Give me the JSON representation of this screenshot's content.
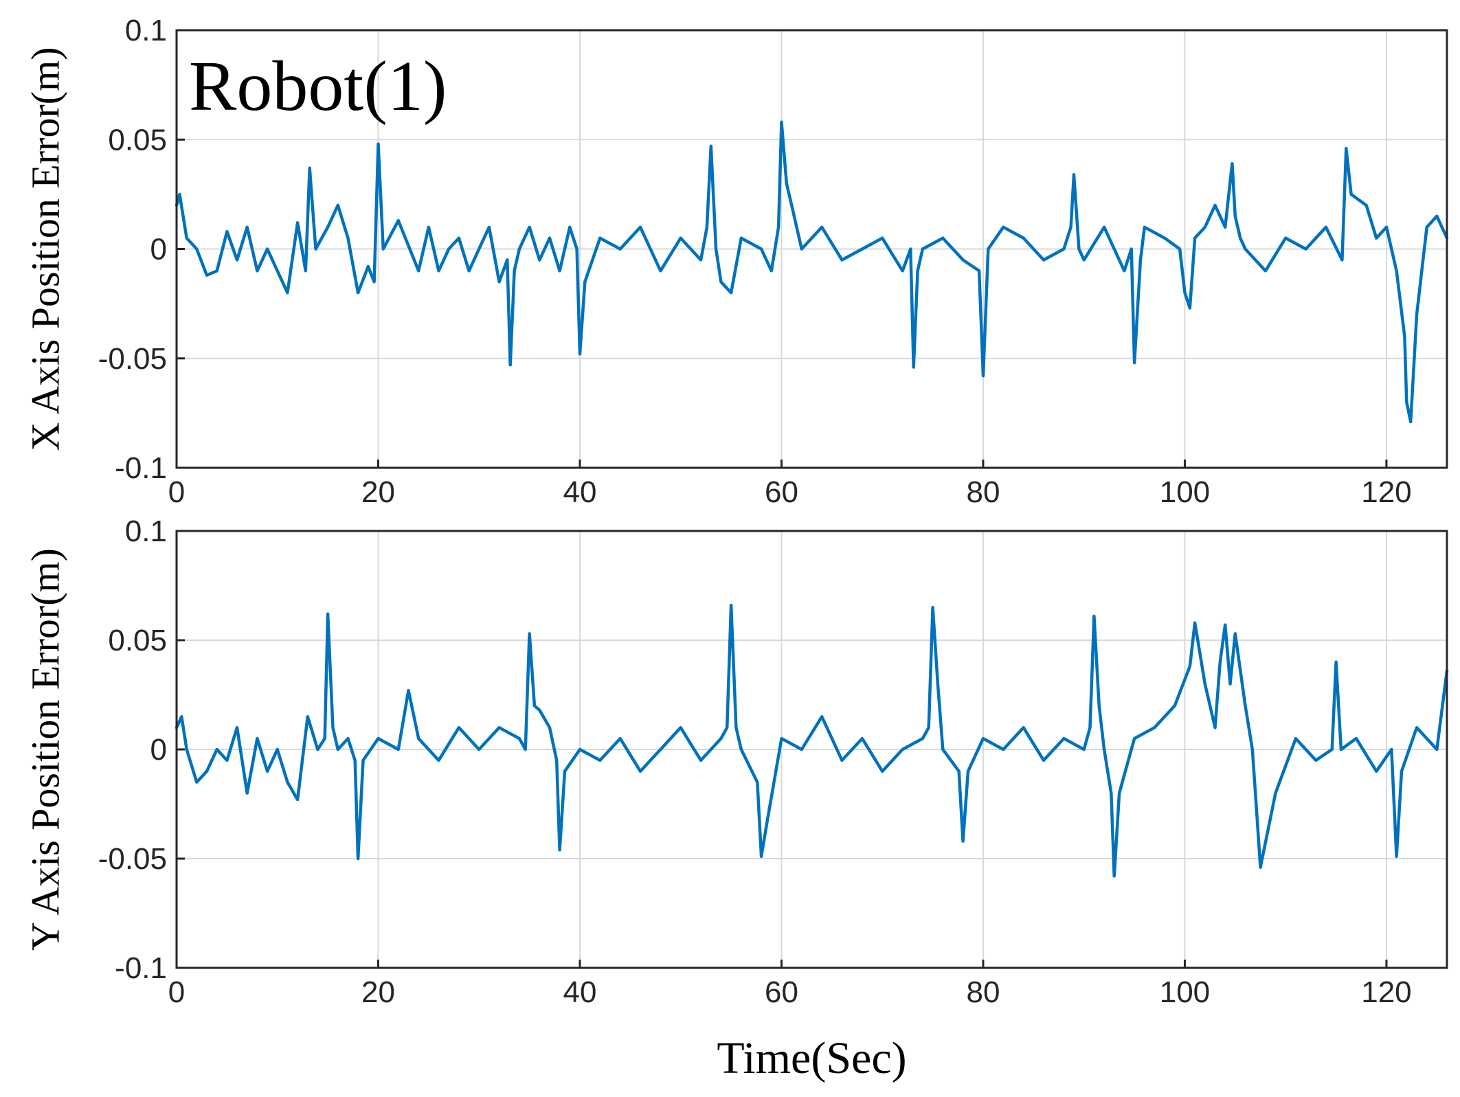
{
  "colors": {
    "series": "#0072BD"
  },
  "chart_data": [
    {
      "type": "line",
      "annotation": "Robot(1)",
      "xlabel": "",
      "ylabel": "X Axis Position Error(m)",
      "xlim": [
        0,
        126
      ],
      "ylim": [
        -0.1,
        0.1
      ],
      "xticks": [
        0,
        20,
        40,
        60,
        80,
        100,
        120
      ],
      "xtick_labels": [
        "0",
        "20",
        "40",
        "60",
        "80",
        "100",
        "120"
      ],
      "yticks": [
        0.1,
        0.05,
        0,
        -0.05,
        -0.1
      ],
      "ytick_labels": [
        "0.1",
        "0.05",
        "0",
        "-0.05",
        "-0.1"
      ],
      "grid": true,
      "series": [
        {
          "x": [
            0,
            0.3,
            1,
            2,
            3,
            4,
            5,
            6,
            7,
            8,
            9,
            10,
            11,
            12,
            12.8,
            13.2,
            13.8,
            15,
            16,
            17,
            18,
            19,
            19.6,
            20,
            20.5,
            22,
            24,
            25,
            26,
            27,
            28,
            29,
            30,
            31,
            32,
            32.8,
            33.1,
            33.5,
            34,
            35,
            36,
            37,
            38,
            39,
            39.7,
            40,
            40.5,
            42,
            44,
            46,
            48,
            50,
            52,
            52.6,
            53,
            53.5,
            54,
            55,
            56,
            58,
            59,
            59.7,
            60,
            60.5,
            61,
            62,
            64,
            66,
            68,
            70,
            72,
            72.8,
            73.1,
            73.5,
            74,
            76,
            78,
            79.6,
            80,
            80.5,
            82,
            84,
            86,
            88,
            88.7,
            89,
            89.5,
            90,
            92,
            94,
            94.7,
            95,
            95.6,
            96,
            98,
            99.5,
            100,
            100.5,
            101,
            102,
            103,
            104,
            104.7,
            105,
            105.5,
            106,
            108,
            110,
            112,
            114,
            115.6,
            116,
            116.5,
            118,
            119,
            120,
            121,
            121.8,
            122,
            122.4,
            123,
            124,
            125,
            126
          ],
          "y": [
            0.02,
            0.025,
            0.005,
            0.0,
            -0.012,
            -0.01,
            0.008,
            -0.005,
            0.01,
            -0.01,
            0.0,
            -0.01,
            -0.02,
            0.012,
            -0.01,
            0.037,
            0.0,
            0.01,
            0.02,
            0.005,
            -0.02,
            -0.008,
            -0.015,
            0.048,
            0.0,
            0.013,
            -0.01,
            0.01,
            -0.01,
            0.0,
            0.005,
            -0.01,
            0.0,
            0.01,
            -0.015,
            -0.005,
            -0.053,
            -0.01,
            0.0,
            0.01,
            -0.005,
            0.005,
            -0.01,
            0.01,
            0.0,
            -0.048,
            -0.015,
            0.005,
            0.0,
            0.01,
            -0.01,
            0.005,
            -0.005,
            0.01,
            0.047,
            0.0,
            -0.015,
            -0.02,
            0.005,
            0.0,
            -0.01,
            0.01,
            0.058,
            0.03,
            0.02,
            0.0,
            0.01,
            -0.005,
            0.0,
            0.005,
            -0.01,
            0.0,
            -0.054,
            -0.01,
            0.0,
            0.005,
            -0.005,
            -0.01,
            -0.058,
            0.0,
            0.01,
            0.005,
            -0.005,
            0.0,
            0.01,
            0.034,
            0.0,
            -0.005,
            0.01,
            -0.01,
            0.0,
            -0.052,
            -0.005,
            0.01,
            0.005,
            0.0,
            -0.02,
            -0.027,
            0.005,
            0.01,
            0.02,
            0.01,
            0.039,
            0.015,
            0.005,
            0.0,
            -0.01,
            0.005,
            0.0,
            0.01,
            -0.005,
            0.046,
            0.025,
            0.02,
            0.005,
            0.01,
            -0.01,
            -0.04,
            -0.07,
            -0.079,
            -0.03,
            0.01,
            0.015,
            0.005
          ]
        }
      ]
    },
    {
      "type": "line",
      "xlabel": "Time(Sec)",
      "ylabel": "Y Axis Position Error(m)",
      "xlim": [
        0,
        126
      ],
      "ylim": [
        -0.1,
        0.1
      ],
      "xticks": [
        0,
        20,
        40,
        60,
        80,
        100,
        120
      ],
      "xtick_labels": [
        "0",
        "20",
        "40",
        "60",
        "80",
        "100",
        "120"
      ],
      "yticks": [
        0.1,
        0.05,
        0,
        -0.05,
        -0.1
      ],
      "ytick_labels": [
        "0.1",
        "0.05",
        "0",
        "-0.05",
        "-0.1"
      ],
      "grid": true,
      "series": [
        {
          "x": [
            0,
            0.5,
            1,
            2,
            3,
            4,
            5,
            6,
            7,
            8,
            9,
            10,
            11,
            12,
            13,
            14,
            14.7,
            15,
            15.5,
            16,
            17,
            17.7,
            18,
            18.5,
            20,
            22,
            23,
            24,
            26,
            28,
            30,
            32,
            34,
            34.6,
            35,
            35.5,
            36,
            37,
            37.7,
            38,
            38.5,
            40,
            42,
            44,
            46,
            48,
            50,
            52,
            54,
            54.6,
            55,
            55.5,
            56,
            57.6,
            58,
            58.5,
            60,
            62,
            64,
            66,
            68,
            70,
            72,
            74,
            74.6,
            75,
            75.5,
            76,
            77.6,
            78,
            78.5,
            80,
            82,
            84,
            86,
            88,
            90,
            90.6,
            91,
            91.5,
            92,
            92.7,
            93,
            93.5,
            95,
            97,
            99,
            100.5,
            101,
            102,
            103,
            103.5,
            104,
            104.5,
            105,
            106,
            106.7,
            107,
            107.5,
            109,
            111,
            113,
            114.6,
            115,
            115.5,
            117,
            119,
            120.5,
            121,
            121.5,
            123,
            125,
            126
          ],
          "y": [
            0.01,
            0.015,
            0.0,
            -0.015,
            -0.01,
            0.0,
            -0.005,
            0.01,
            -0.02,
            0.005,
            -0.01,
            0.0,
            -0.015,
            -0.023,
            0.015,
            0.0,
            0.005,
            0.062,
            0.01,
            0.0,
            0.005,
            -0.005,
            -0.05,
            -0.005,
            0.005,
            0.0,
            0.027,
            0.005,
            -0.005,
            0.01,
            0.0,
            0.01,
            0.005,
            0.0,
            0.053,
            0.02,
            0.018,
            0.01,
            -0.005,
            -0.046,
            -0.01,
            0.0,
            -0.005,
            0.005,
            -0.01,
            0.0,
            0.01,
            -0.005,
            0.005,
            0.01,
            0.066,
            0.01,
            0.0,
            -0.015,
            -0.049,
            -0.035,
            0.005,
            0.0,
            0.015,
            -0.005,
            0.005,
            -0.01,
            0.0,
            0.005,
            0.01,
            0.065,
            0.03,
            0.0,
            -0.01,
            -0.042,
            -0.01,
            0.005,
            0.0,
            0.01,
            -0.005,
            0.005,
            0.0,
            0.01,
            0.061,
            0.02,
            0.0,
            -0.02,
            -0.058,
            -0.02,
            0.005,
            0.01,
            0.02,
            0.038,
            0.058,
            0.03,
            0.01,
            0.04,
            0.057,
            0.03,
            0.053,
            0.02,
            0.0,
            -0.02,
            -0.054,
            -0.02,
            0.005,
            -0.005,
            0.0,
            0.04,
            0.0,
            0.005,
            -0.01,
            0.0,
            -0.049,
            -0.01,
            0.01,
            0.0,
            0.036
          ]
        }
      ]
    }
  ]
}
